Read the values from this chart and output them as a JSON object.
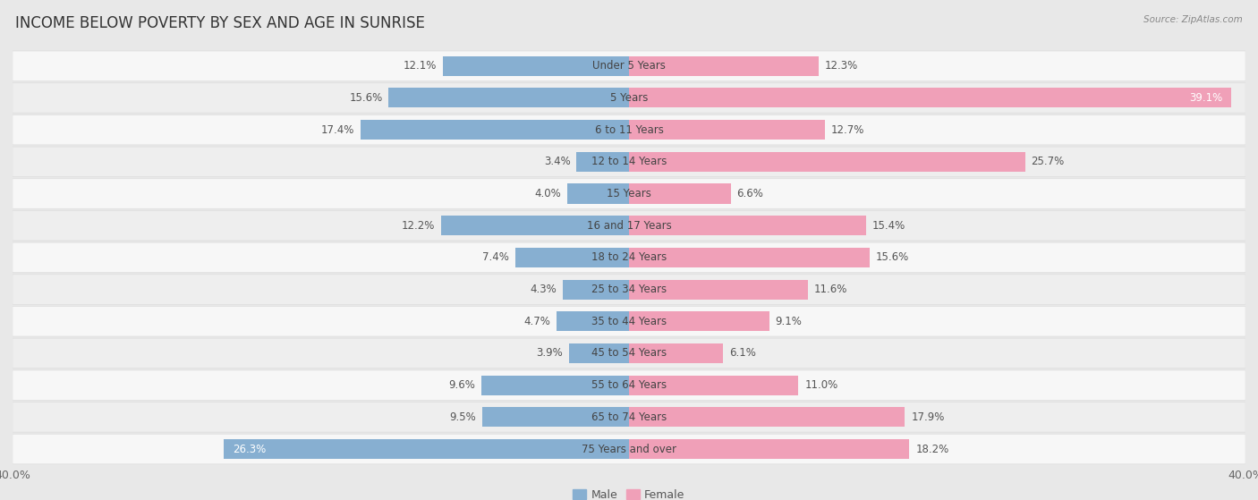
{
  "title": "INCOME BELOW POVERTY BY SEX AND AGE IN SUNRISE",
  "source": "Source: ZipAtlas.com",
  "categories": [
    "Under 5 Years",
    "5 Years",
    "6 to 11 Years",
    "12 to 14 Years",
    "15 Years",
    "16 and 17 Years",
    "18 to 24 Years",
    "25 to 34 Years",
    "35 to 44 Years",
    "45 to 54 Years",
    "55 to 64 Years",
    "65 to 74 Years",
    "75 Years and over"
  ],
  "male": [
    12.1,
    15.6,
    17.4,
    3.4,
    4.0,
    12.2,
    7.4,
    4.3,
    4.7,
    3.9,
    9.6,
    9.5,
    26.3
  ],
  "female": [
    12.3,
    39.1,
    12.7,
    25.7,
    6.6,
    15.4,
    15.6,
    11.6,
    9.1,
    6.1,
    11.0,
    17.9,
    18.2
  ],
  "male_color": "#87afd1",
  "female_color": "#f0a0b8",
  "male_label": "Male",
  "female_label": "Female",
  "axis_max": 40.0,
  "outer_bg": "#e8e8e8",
  "row_bg_light": "#f7f7f7",
  "row_bg_dark": "#eeeeee",
  "row_border": "#dddddd",
  "title_fontsize": 12,
  "label_fontsize": 8.5,
  "tick_fontsize": 9,
  "bar_height": 0.62
}
